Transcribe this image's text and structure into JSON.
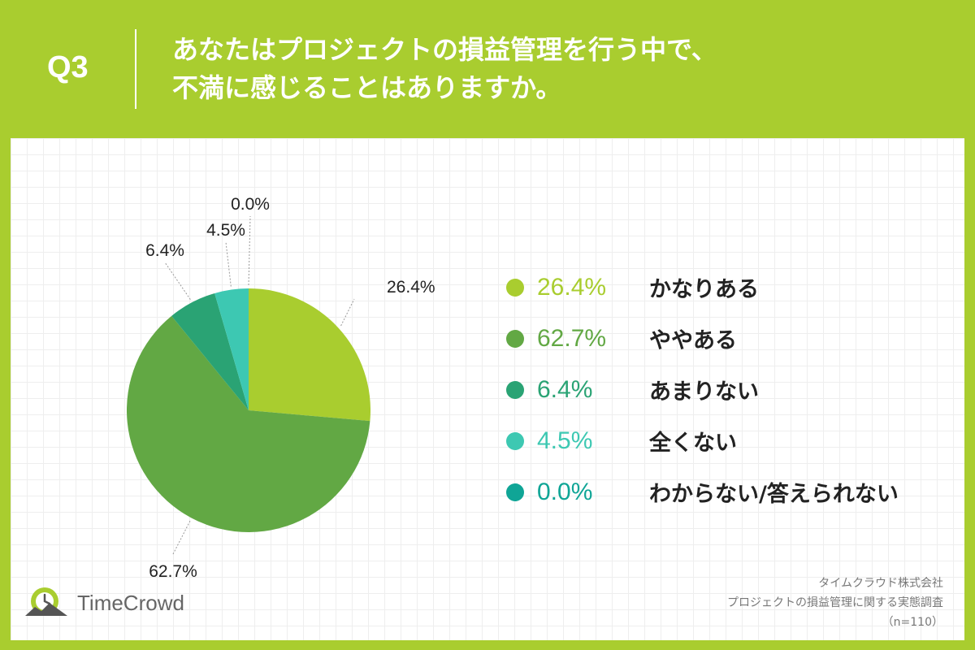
{
  "header": {
    "q_label": "Q3",
    "question_line1": "あなたはプロジェクトの損益管理を行う中で、",
    "question_line2": "不満に感じることはありますか。"
  },
  "chart_data": {
    "type": "pie",
    "slices": [
      {
        "label": "かなりある",
        "value": 26.4,
        "value_label": "26.4%",
        "color": "#a9cd2f"
      },
      {
        "label": "ややある",
        "value": 62.7,
        "value_label": "62.7%",
        "color": "#62a844"
      },
      {
        "label": "あまりない",
        "value": 6.4,
        "value_label": "6.4%",
        "color": "#2aa374"
      },
      {
        "label": "全くない",
        "value": 4.5,
        "value_label": "4.5%",
        "color": "#3dc8b2"
      },
      {
        "label": "わからない/答えられない",
        "value": 0.0,
        "value_label": "0.0%",
        "color": "#0fa596"
      }
    ],
    "legend_placement": "right"
  },
  "footnote": {
    "line1": "タイムクラウド株式会社",
    "line2": "プロジェクトの損益管理に関する実態調査",
    "line3": "（n=110）"
  },
  "logo": {
    "text": "TimeCrowd",
    "icon": "clock-mountain-logo-icon"
  },
  "colors": {
    "background": "#a9cd2f",
    "panel": "#ffffff"
  }
}
